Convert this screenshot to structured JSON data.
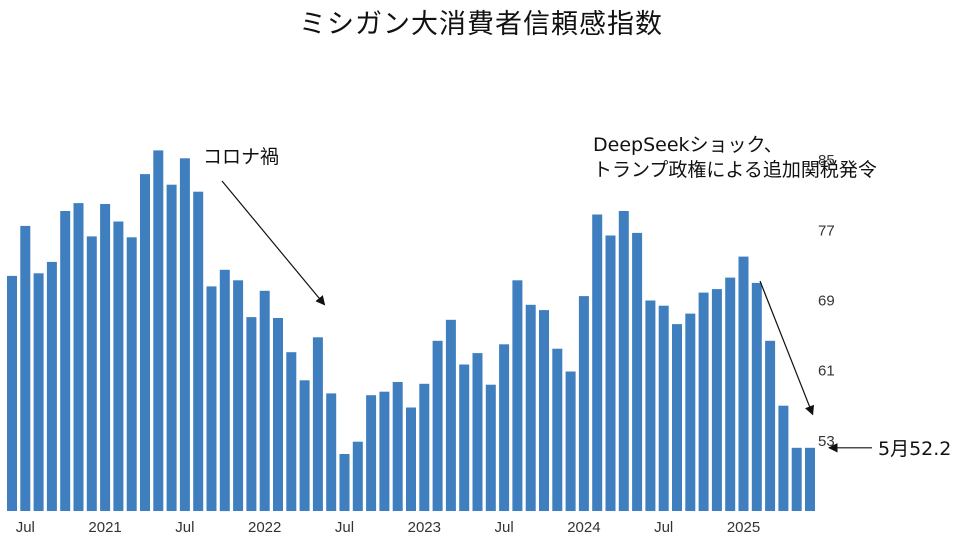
{
  "chart_data": {
    "type": "bar",
    "title": "ミシガン大消費者信頼感指数",
    "color": "#3f7fbf",
    "y_range": [
      45,
      89
    ],
    "y_ticks": [
      53,
      61,
      69,
      77,
      85
    ],
    "values": [
      71.8,
      77.5,
      72.1,
      73.4,
      79.2,
      80.1,
      76.3,
      80.0,
      78.0,
      76.2,
      83.4,
      86.1,
      82.2,
      85.2,
      81.4,
      70.6,
      72.5,
      71.3,
      67.1,
      70.1,
      67.0,
      63.1,
      59.9,
      64.8,
      58.4,
      51.5,
      52.9,
      58.2,
      58.6,
      59.7,
      56.8,
      59.5,
      64.4,
      66.8,
      61.7,
      63.0,
      59.4,
      64.0,
      71.3,
      68.5,
      67.9,
      63.5,
      60.9,
      69.5,
      78.8,
      76.4,
      79.2,
      76.7,
      69.0,
      68.4,
      66.3,
      67.5,
      69.9,
      70.3,
      71.6,
      74.0,
      71.0,
      64.4,
      57.0,
      52.2,
      52.2
    ],
    "x_ticks": [
      {
        "label": "Jul",
        "index": 1
      },
      {
        "label": "2021",
        "index": 7
      },
      {
        "label": "Jul",
        "index": 13
      },
      {
        "label": "2022",
        "index": 19
      },
      {
        "label": "Jul",
        "index": 25
      },
      {
        "label": "2023",
        "index": 31
      },
      {
        "label": "Jul",
        "index": 37
      },
      {
        "label": "2024",
        "index": 43
      },
      {
        "label": "Jul",
        "index": 49
      },
      {
        "label": "2025",
        "index": 55
      }
    ],
    "annotations": [
      {
        "id": "corona",
        "lines": [
          "コロナ禍"
        ],
        "arrow_from_index": 16.2,
        "arrow_to_index": 23.5,
        "arrow_to_value": 68.5
      },
      {
        "id": "deepseek",
        "lines": [
          "DeepSeekショック、",
          "トランプ政権による追加関税発令"
        ],
        "arrow_from_index": 56.2,
        "arrow_to_index": 60.2,
        "arrow_to_value": 56.0
      }
    ],
    "last_label": "5月52.2"
  }
}
